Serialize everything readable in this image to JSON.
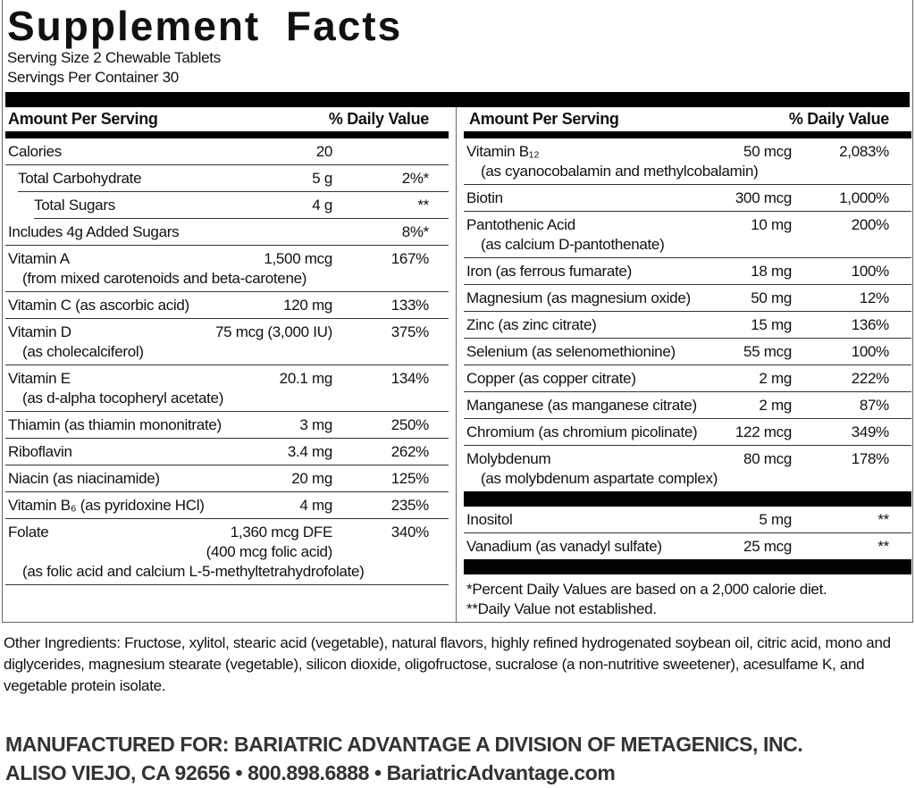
{
  "title": "Supplement Facts",
  "serving_size": "Serving Size 2 Chewable Tablets",
  "servings_per_container": "Servings Per Container 30",
  "left": {
    "header_amount": "Amount Per Serving",
    "header_dv": "% Daily Value",
    "rows": [
      {
        "name": "Calories",
        "amount": "20"
      },
      {
        "name": "Total Carbohydrate",
        "amount": "5 g",
        "dv": "2%*"
      },
      {
        "name": "Total Sugars",
        "amount": "4 g",
        "dv": "**"
      },
      {
        "name": "Includes 4g Added Sugars",
        "dv": "8%*"
      },
      {
        "name": "Vitamin A",
        "amount": "1,500 mcg",
        "dv": "167%",
        "note": "(from mixed carotenoids and beta-carotene)"
      },
      {
        "name": "Vitamin C (as ascorbic acid)",
        "amount": "120 mg",
        "dv": "133%"
      },
      {
        "name": "Vitamin D",
        "amount": "75 mcg (3,000 IU)",
        "dv": "375%",
        "note": "(as cholecalciferol)"
      },
      {
        "name": "Vitamin E",
        "amount": "20.1 mg",
        "dv": "134%",
        "note": "(as d-alpha tocopheryl acetate)"
      },
      {
        "name": "Thiamin (as thiamin mononitrate)",
        "amount": "3 mg",
        "dv": "250%"
      },
      {
        "name": "Riboflavin",
        "amount": "3.4 mg",
        "dv": "262%"
      },
      {
        "name": "Niacin (as niacinamide)",
        "amount": "20 mg",
        "dv": "125%"
      },
      {
        "name": "Vitamin B₆ (as pyridoxine HCl)",
        "amount": "4 mg",
        "dv": "235%"
      },
      {
        "name": "Folate",
        "amount": "1,360 mcg DFE",
        "dv": "340%",
        "amount_note": "(400 mcg folic acid)",
        "note": "(as folic acid and calcium L-5-methyltetrahydrofolate)"
      }
    ]
  },
  "right": {
    "header_amount": "Amount Per Serving",
    "header_dv": "% Daily Value",
    "rows": [
      {
        "name": "Vitamin B₁₂",
        "amount": "50 mcg",
        "dv": "2,083%",
        "note": "(as cyanocobalamin and methylcobalamin)"
      },
      {
        "name": "Biotin",
        "amount": "300 mcg",
        "dv": "1,000%"
      },
      {
        "name": "Pantothenic Acid",
        "amount": "10 mg",
        "dv": "200%",
        "note": "(as calcium D-pantothenate)"
      },
      {
        "name": "Iron (as ferrous fumarate)",
        "amount": "18 mg",
        "dv": "100%"
      },
      {
        "name": "Magnesium (as magnesium oxide)",
        "amount": "50 mg",
        "dv": "12%"
      },
      {
        "name": "Zinc (as zinc citrate)",
        "amount": "15 mg",
        "dv": "136%"
      },
      {
        "name": "Selenium (as selenomethionine)",
        "amount": "55 mcg",
        "dv": "100%"
      },
      {
        "name": "Copper (as copper citrate)",
        "amount": "2 mg",
        "dv": "222%"
      },
      {
        "name": "Manganese (as manganese citrate)",
        "amount": "2 mg",
        "dv": "87%"
      },
      {
        "name": "Chromium (as chromium picolinate)",
        "amount": "122 mcg",
        "dv": "349%"
      },
      {
        "name": "Molybdenum",
        "amount": "80 mcg",
        "dv": "178%",
        "note": "(as molybdenum aspartate complex)"
      }
    ],
    "other_rows": [
      {
        "name": "Inositol",
        "amount": "5 mg",
        "dv": "**"
      },
      {
        "name": "Vanadium (as vanadyl sulfate)",
        "amount": "25 mcg",
        "dv": "**"
      }
    ],
    "footnotes": [
      "*Percent Daily Values are based on a 2,000 calorie diet.",
      "**Daily Value not established."
    ]
  },
  "other_ingredients": "Other Ingredients: Fructose, xylitol, stearic acid (vegetable), natural flavors, highly refined hydrogenated soybean oil, citric acid, mono and diglycerides, magnesium stearate (vegetable), silicon dioxide, oligofructose, sucralose (a non-nutritive sweetener), acesulfame K, and vegetable protein isolate.",
  "manufacturer": [
    "MANUFACTURED FOR: BARIATRIC ADVANTAGE A DIVISION OF METAGENICS, INC.",
    "ALISO VIEJO, CA 92656 • 800.898.6888 • BariatricAdvantage.com"
  ]
}
